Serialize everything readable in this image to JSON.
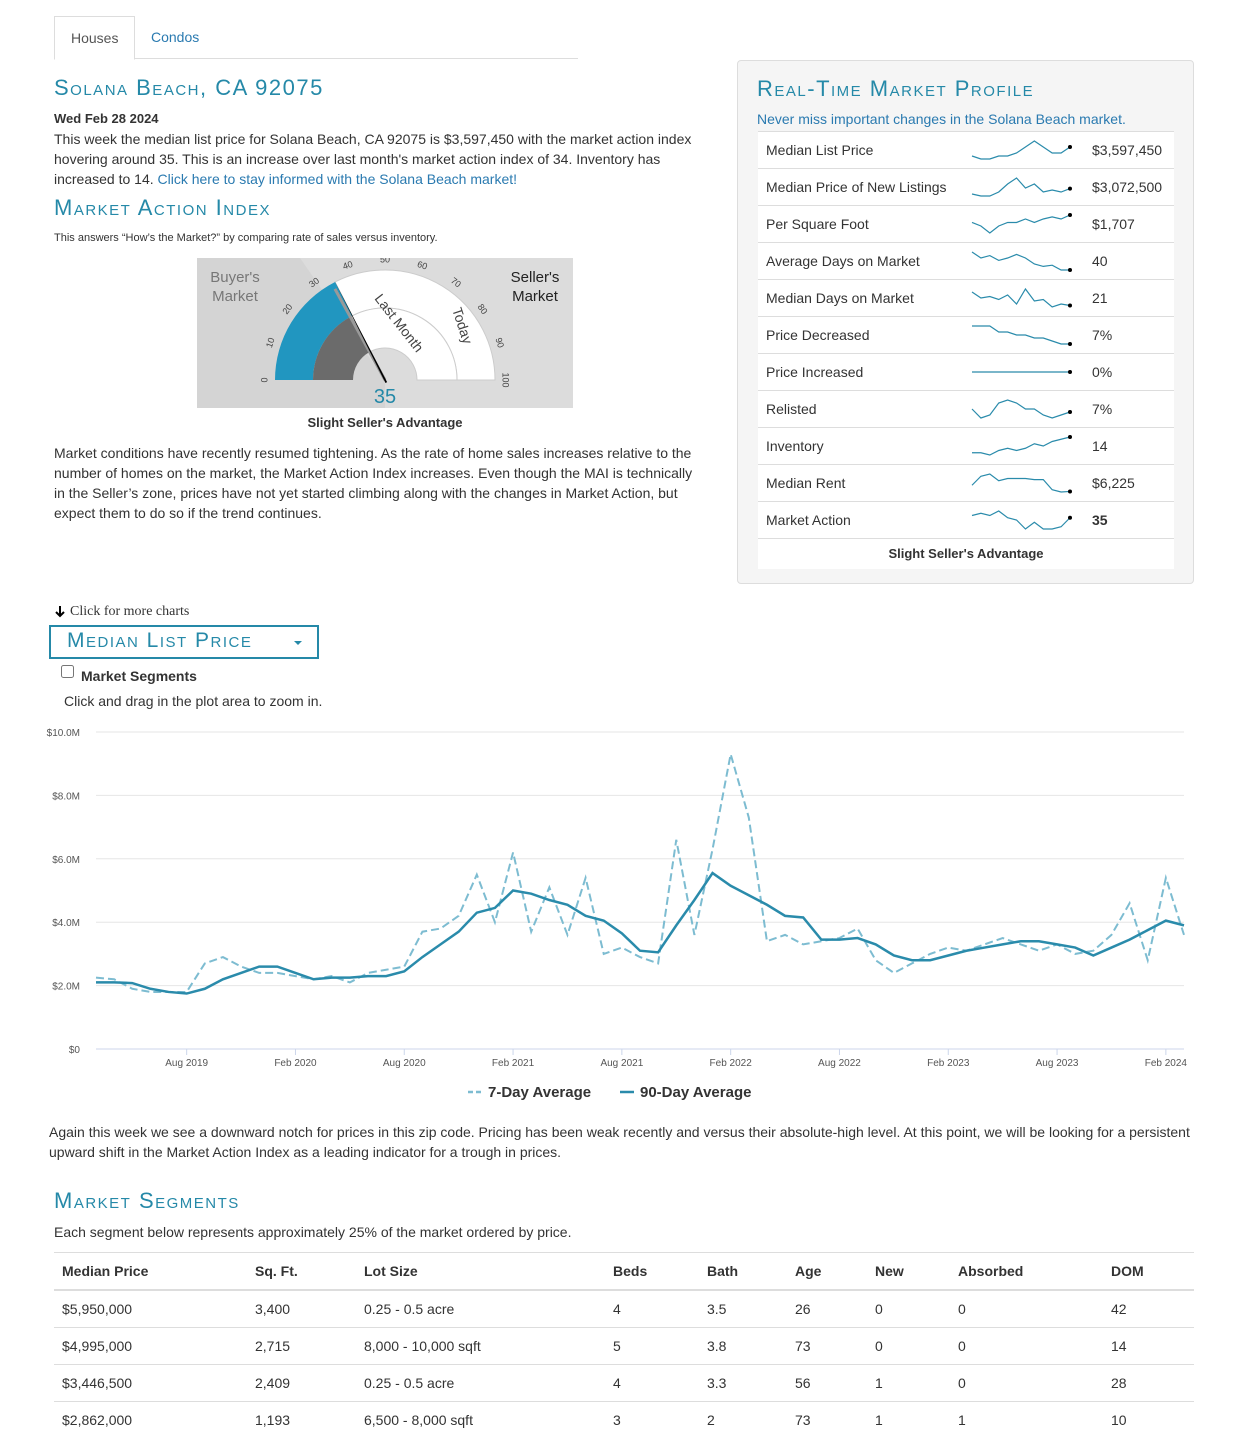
{
  "tabs": [
    "Houses",
    "Condos"
  ],
  "header": {
    "title": "Solana Beach, CA 92075",
    "date": "Wed Feb 28 2024",
    "intro": "This week the median list price for Solana Beach, CA 92075 is $3,597,450 with the market action index hovering around 35. This is an increase over last month's market action index of 34. Inventory has increased to 14. ",
    "link": "Click here to stay informed with the Solana Beach market!"
  },
  "mai": {
    "title": "Market Action Index",
    "subtitle": "This answers “How’s the Market?” by comparing rate of sales versus inventory.",
    "gauge": {
      "buyer_label": "Buyer's Market",
      "seller_label": "Seller's Market",
      "ticks": [
        0,
        10,
        20,
        30,
        40,
        50,
        60,
        70,
        80,
        90,
        100
      ],
      "today": 35,
      "last_month": 34,
      "today_label": "Today",
      "last_month_label": "Last Month"
    },
    "caption": "Slight Seller's Advantage",
    "text": "Market conditions have recently resumed tightening. As the rate of home sales increases relative to the number of homes on the market, the Market Action Index increases. Even though the MAI is technically in the Seller’s zone, prices have not yet started climbing along with the changes in Market Action, but expect them to do so if the trend continues."
  },
  "profile": {
    "title": "Real-Time Market Profile",
    "subtitle": "Never miss important changes in the Solana Beach market.",
    "rows": [
      {
        "label": "Median List Price",
        "value": "$3,597,450",
        "spark": [
          3.3,
          3.2,
          3.2,
          3.3,
          3.3,
          3.4,
          3.6,
          3.8,
          3.6,
          3.4,
          3.4,
          3.6
        ]
      },
      {
        "label": "Median Price of New Listings",
        "value": "$3,072,500",
        "spark": [
          2.8,
          2.7,
          2.7,
          2.9,
          3.3,
          3.6,
          3.1,
          3.3,
          2.9,
          3.0,
          2.9,
          3.07
        ]
      },
      {
        "label": "Per Square Foot",
        "value": "$1,707",
        "spark": [
          1600,
          1550,
          1450,
          1550,
          1600,
          1600,
          1650,
          1600,
          1650,
          1680,
          1650,
          1707
        ]
      },
      {
        "label": "Average Days on Market",
        "value": "40",
        "spark": [
          55,
          50,
          52,
          48,
          50,
          53,
          50,
          45,
          43,
          44,
          40,
          40
        ]
      },
      {
        "label": "Median Days on Market",
        "value": "21",
        "spark": [
          30,
          26,
          27,
          25,
          28,
          22,
          32,
          24,
          25,
          20,
          22,
          21
        ]
      },
      {
        "label": "Price Decreased",
        "value": "7%",
        "spark": [
          10,
          10,
          10,
          9,
          9,
          8.5,
          8.5,
          8,
          8,
          7.5,
          7,
          7
        ]
      },
      {
        "label": "Price Increased",
        "value": "0%",
        "spark": [
          0,
          0,
          0,
          0,
          0,
          0,
          0,
          0,
          0,
          0,
          0,
          0
        ]
      },
      {
        "label": "Relisted",
        "value": "7%",
        "spark": [
          8,
          5,
          6,
          10,
          11,
          10,
          8,
          8,
          6,
          5,
          6,
          7
        ]
      },
      {
        "label": "Inventory",
        "value": "14",
        "spark": [
          7,
          7,
          6,
          8,
          9,
          8,
          9,
          11,
          10,
          12,
          13,
          14
        ]
      },
      {
        "label": "Median Rent",
        "value": "$6,225",
        "spark": [
          6500,
          6900,
          7000,
          6700,
          6800,
          6800,
          6800,
          6750,
          6750,
          6300,
          6200,
          6225
        ]
      },
      {
        "label": "Market Action",
        "value": "35",
        "spark": [
          36,
          37,
          36,
          38,
          35,
          34,
          30,
          33,
          30,
          30,
          31,
          35
        ]
      }
    ],
    "caption": "Slight Seller's Advantage"
  },
  "charts": {
    "more": "Click for more charts",
    "selector": "Median List Price",
    "segments_toggle": "Market Segments",
    "hint": "Click and drag in the plot area to zoom in."
  },
  "chart_data": {
    "type": "line",
    "x": [
      "2019-03",
      "2019-04",
      "2019-05",
      "2019-06",
      "2019-07",
      "2019-08",
      "2019-09",
      "2019-10",
      "2019-11",
      "2019-12",
      "2020-01",
      "2020-02",
      "2020-03",
      "2020-04",
      "2020-05",
      "2020-06",
      "2020-07",
      "2020-08",
      "2020-09",
      "2020-10",
      "2020-11",
      "2020-12",
      "2021-01",
      "2021-02",
      "2021-03",
      "2021-04",
      "2021-05",
      "2021-06",
      "2021-07",
      "2021-08",
      "2021-09",
      "2021-10",
      "2021-11",
      "2021-12",
      "2022-01",
      "2022-02",
      "2022-03",
      "2022-04",
      "2022-05",
      "2022-06",
      "2022-07",
      "2022-08",
      "2022-09",
      "2022-10",
      "2022-11",
      "2022-12",
      "2023-01",
      "2023-02",
      "2023-03",
      "2023-04",
      "2023-05",
      "2023-06",
      "2023-07",
      "2023-08",
      "2023-09",
      "2023-10",
      "2023-11",
      "2023-12",
      "2024-01",
      "2024-02",
      "2024-03"
    ],
    "series": [
      {
        "name": "7-Day Average",
        "color": "#7dbcd1",
        "dashed": true,
        "values": [
          2250000,
          2200000,
          1900000,
          1800000,
          1800000,
          1800000,
          2700000,
          2900000,
          2600000,
          2400000,
          2400000,
          2300000,
          2200000,
          2300000,
          2100000,
          2400000,
          2500000,
          2600000,
          3700000,
          3800000,
          4200000,
          5500000,
          4000000,
          6200000,
          3700000,
          5100000,
          3600000,
          5400000,
          3000000,
          3200000,
          2900000,
          2700000,
          6600000,
          3600000,
          6300000,
          9300000,
          7300000,
          3400000,
          3600000,
          3300000,
          3400000,
          3500000,
          3800000,
          2800000,
          2400000,
          2700000,
          3000000,
          3200000,
          3100000,
          3300000,
          3500000,
          3300000,
          3100000,
          3300000,
          3000000,
          3100000,
          3600000,
          4600000,
          2800000,
          5400000,
          3600000
        ]
      },
      {
        "name": "90-Day Average",
        "color": "#2a8bab",
        "dashed": false,
        "values": [
          2100000,
          2100000,
          2080000,
          1900000,
          1800000,
          1750000,
          1900000,
          2200000,
          2400000,
          2600000,
          2600000,
          2400000,
          2200000,
          2250000,
          2250000,
          2300000,
          2300000,
          2450000,
          2900000,
          3300000,
          3700000,
          4300000,
          4450000,
          5000000,
          4900000,
          4700000,
          4550000,
          4200000,
          4050000,
          3650000,
          3100000,
          3050000,
          3900000,
          4700000,
          5550000,
          5150000,
          4850000,
          4550000,
          4200000,
          4150000,
          3450000,
          3450000,
          3500000,
          3300000,
          2950000,
          2800000,
          2800000,
          2950000,
          3100000,
          3200000,
          3300000,
          3400000,
          3400000,
          3300000,
          3200000,
          2950000,
          3200000,
          3450000,
          3750000,
          4050000,
          3900000
        ]
      }
    ],
    "xlim": [
      "2019-03",
      "2024-03"
    ],
    "xticks": [
      {
        "value": "2019-08",
        "label": "Aug 2019"
      },
      {
        "value": "2020-02",
        "label": "Feb 2020"
      },
      {
        "value": "2020-08",
        "label": "Aug 2020"
      },
      {
        "value": "2021-02",
        "label": "Feb 2021"
      },
      {
        "value": "2021-08",
        "label": "Aug 2021"
      },
      {
        "value": "2022-02",
        "label": "Feb 2022"
      },
      {
        "value": "2022-08",
        "label": "Aug 2022"
      },
      {
        "value": "2023-02",
        "label": "Feb 2023"
      },
      {
        "value": "2023-08",
        "label": "Aug 2023"
      },
      {
        "value": "2024-02",
        "label": "Feb 2024"
      }
    ],
    "ylim": [
      0,
      10000000
    ],
    "yticks": [
      {
        "value": 0,
        "label": "$0"
      },
      {
        "value": 2000000,
        "label": "$2.0M"
      },
      {
        "value": 4000000,
        "label": "$4.0M"
      },
      {
        "value": 6000000,
        "label": "$6.0M"
      },
      {
        "value": 8000000,
        "label": "$8.0M"
      },
      {
        "value": 10000000,
        "label": "$10.0M"
      }
    ],
    "grid": true,
    "legend": "bottom"
  },
  "commentary": "Again this week we see a downward notch for prices in this zip code. Pricing has been weak recently and versus their absolute-high level. At this point, we will be looking for a persistent upward shift in the Market Action Index as a leading indicator for a trough in prices.",
  "segments": {
    "title": "Market Segments",
    "subtitle": "Each segment below represents approximately 25% of the market ordered by price.",
    "columns": [
      "Median Price",
      "Sq. Ft.",
      "Lot Size",
      "Beds",
      "Bath",
      "Age",
      "New",
      "Absorbed",
      "DOM"
    ],
    "rows": [
      [
        "$5,950,000",
        "3,400",
        "0.25 - 0.5 acre",
        "4",
        "3.5",
        "26",
        "0",
        "0",
        "42"
      ],
      [
        "$4,995,000",
        "2,715",
        "8,000 - 10,000 sqft",
        "5",
        "3.8",
        "73",
        "0",
        "0",
        "14"
      ],
      [
        "$3,446,500",
        "2,409",
        "0.25 - 0.5 acre",
        "4",
        "3.3",
        "56",
        "1",
        "0",
        "28"
      ],
      [
        "$2,862,000",
        "1,193",
        "6,500 - 8,000 sqft",
        "3",
        "2",
        "73",
        "1",
        "1",
        "10"
      ]
    ]
  }
}
